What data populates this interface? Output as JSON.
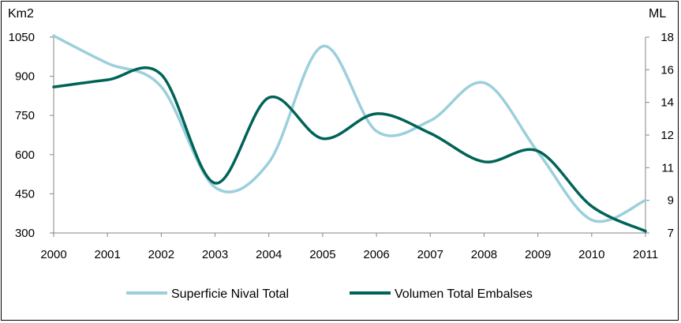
{
  "chart_data": {
    "type": "line",
    "title": "",
    "x": [
      "2000",
      "2001",
      "2002",
      "2003",
      "2004",
      "2005",
      "2006",
      "2007",
      "2008",
      "2009",
      "2010",
      "2011"
    ],
    "left_axis": {
      "label": "Km2",
      "ticks": [
        "300",
        "450",
        "600",
        "750",
        "900",
        "1050"
      ],
      "ylim": [
        300,
        1050
      ]
    },
    "right_axis": {
      "label": "ML",
      "ticks": [
        "7",
        "9",
        "11",
        "12",
        "14",
        "16",
        "18"
      ],
      "ylim": [
        7,
        18
      ]
    },
    "series": [
      {
        "name": "Superficie Nival Total",
        "axis": "left",
        "color": "#9ccfdc",
        "values": [
          1055,
          950,
          860,
          475,
          570,
          1015,
          690,
          730,
          875,
          610,
          350,
          425
        ]
      },
      {
        "name": "Volumen Total Embalses",
        "axis": "right",
        "color": "#006358",
        "values": [
          15.2,
          15.6,
          15.9,
          9.8,
          14.6,
          12.3,
          13.7,
          12.6,
          11.0,
          11.6,
          8.5,
          7.1
        ]
      }
    ],
    "legend_position": "bottom",
    "grid": false
  }
}
